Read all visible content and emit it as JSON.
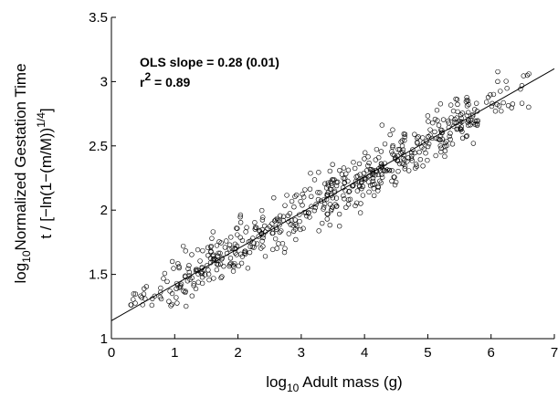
{
  "chart_data": {
    "type": "scatter",
    "title": "",
    "xlabel": {
      "prefix": "log",
      "sub": "10",
      "text": " Adult mass (g)"
    },
    "ylabel": {
      "line1_prefix": "log",
      "line1_sub": "10",
      "line1_text": "Normalized Gestation Time",
      "line2_text": "t / [−ln(1−(m/M))",
      "line2_sup": "1/4",
      "line2_end": "]"
    },
    "xlim": [
      0,
      7
    ],
    "ylim": [
      1,
      3.5
    ],
    "xticks": [
      "0",
      "1",
      "2",
      "3",
      "4",
      "5",
      "6",
      "7"
    ],
    "yticks": [
      "1",
      "1.5",
      "2",
      "2.5",
      "3",
      "3.5"
    ],
    "grid": false,
    "annotation": {
      "slope": "OLS slope = 0.28 (0.01)",
      "r2_prefix": "r",
      "r2_sup": "2",
      "r2_value": " = 0.89"
    },
    "fit_line": {
      "x": [
        0,
        7
      ],
      "y": [
        1.14,
        3.1
      ]
    },
    "marker": {
      "shape": "open-circle",
      "color": "#000000"
    },
    "point_count": 600,
    "noise_sd": 0.17,
    "seed": 12345
  }
}
